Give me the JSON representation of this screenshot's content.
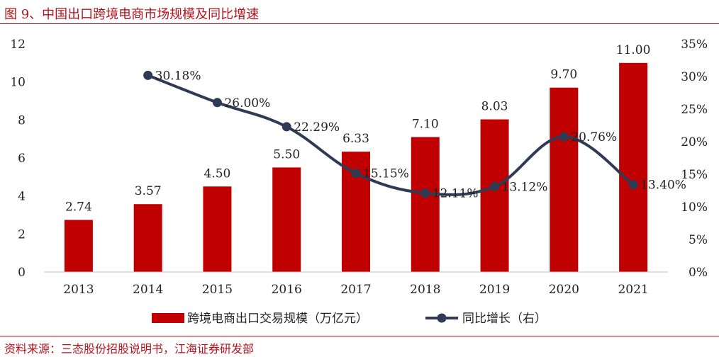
{
  "header": {
    "title": "图 9、中国出口跨境电商市场规模及同比增速"
  },
  "footer": {
    "source": "资料来源：三态股份招股说明书，江海证券研发部"
  },
  "colors": {
    "bar": "#c00000",
    "line": "#2e3b55",
    "accent": "#b5121b"
  },
  "chart_data": {
    "type": "bar",
    "title": "",
    "categories": [
      "2013",
      "2014",
      "2015",
      "2016",
      "2017",
      "2018",
      "2019",
      "2020",
      "2021"
    ],
    "series": [
      {
        "name": "跨境电商出口交易规模（万亿元）",
        "type": "bar",
        "axis": "left",
        "values": [
          2.74,
          3.57,
          4.5,
          5.5,
          6.33,
          7.1,
          8.03,
          9.7,
          11.0
        ],
        "labels": [
          "2.74",
          "3.57",
          "4.50",
          "5.50",
          "6.33",
          "7.10",
          "8.03",
          "9.70",
          "11.00"
        ]
      },
      {
        "name": "同比增长（右）",
        "type": "line",
        "axis": "right",
        "values": [
          null,
          30.18,
          26.0,
          22.29,
          15.15,
          12.11,
          13.12,
          20.76,
          13.4
        ],
        "labels": [
          "",
          "30.18%",
          "26.00%",
          "22.29%",
          "15.15%",
          "12.11%",
          "13.12%",
          "20.76%",
          "13.40%"
        ]
      }
    ],
    "y_left": {
      "ylim": [
        0,
        12
      ],
      "ticks": [
        "0",
        "2",
        "4",
        "6",
        "8",
        "10",
        "12"
      ]
    },
    "y_right": {
      "ylim": [
        0,
        35
      ],
      "ticks": [
        "0%",
        "5%",
        "10%",
        "15%",
        "20%",
        "25%",
        "30%",
        "35%"
      ]
    },
    "legend": {
      "position": "bottom",
      "items": [
        "跨境电商出口交易规模（万亿元）",
        "同比增长（右）"
      ]
    },
    "grid": false
  }
}
